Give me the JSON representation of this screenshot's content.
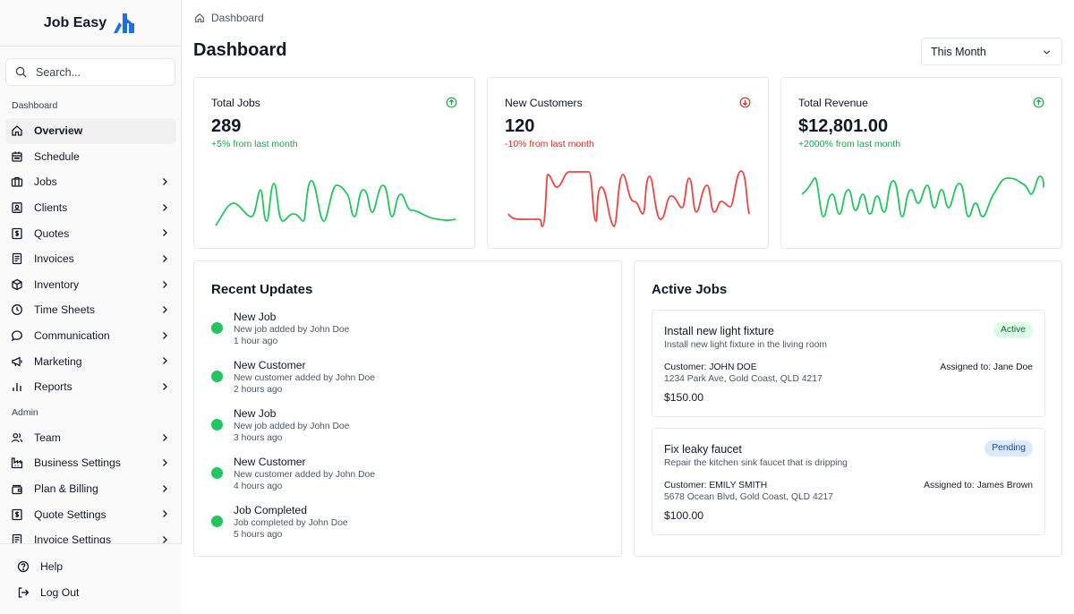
{
  "app": {
    "name": "Job Easy",
    "brand_color": "#1d6fe8"
  },
  "search": {
    "placeholder": "Search..."
  },
  "sidebar": {
    "sections": [
      {
        "label": "Dashboard",
        "items": [
          {
            "label": "Overview",
            "icon": "home-icon",
            "active": true,
            "chevron": false
          },
          {
            "label": "Schedule",
            "icon": "calendar-icon",
            "chevron": false
          },
          {
            "label": "Jobs",
            "icon": "briefcase-icon",
            "chevron": true
          },
          {
            "label": "Clients",
            "icon": "contact-icon",
            "chevron": true
          },
          {
            "label": "Quotes",
            "icon": "dollar-document-icon",
            "chevron": true
          },
          {
            "label": "Invoices",
            "icon": "invoice-icon",
            "chevron": true
          },
          {
            "label": "Inventory",
            "icon": "package-icon",
            "chevron": true
          },
          {
            "label": "Time Sheets",
            "icon": "clock-icon",
            "chevron": true
          },
          {
            "label": "Communication",
            "icon": "chat-icon",
            "chevron": true
          },
          {
            "label": "Marketing",
            "icon": "megaphone-icon",
            "chevron": true
          },
          {
            "label": "Reports",
            "icon": "bar-chart-icon",
            "chevron": true
          }
        ]
      },
      {
        "label": "Admin",
        "items": [
          {
            "label": "Team",
            "icon": "users-icon",
            "chevron": true
          },
          {
            "label": "Business Settings",
            "icon": "factory-icon",
            "chevron": true
          },
          {
            "label": "Plan & Billing",
            "icon": "wallet-icon",
            "chevron": true
          },
          {
            "label": "Quote Settings",
            "icon": "dollar-document-icon",
            "chevron": true
          },
          {
            "label": "Invoice Settings",
            "icon": "invoice-icon",
            "chevron": true
          }
        ]
      }
    ],
    "bottom": [
      {
        "label": "Help",
        "icon": "help-icon"
      },
      {
        "label": "Log Out",
        "icon": "logout-icon"
      }
    ]
  },
  "breadcrumb": {
    "label": "Dashboard"
  },
  "page": {
    "title": "Dashboard"
  },
  "period": {
    "selected": "This Month"
  },
  "stats": [
    {
      "label": "Total Jobs",
      "value": "289",
      "change": "+5% from last month",
      "trend": "up",
      "color": "#22c55e"
    },
    {
      "label": "New Customers",
      "value": "120",
      "change": "-10% from last month",
      "trend": "down",
      "color": "#ef4444"
    },
    {
      "label": "Total Revenue",
      "value": "$12,801.00",
      "change": "+2000% from last month",
      "trend": "up",
      "color": "#22c55e"
    }
  ],
  "recent_updates": {
    "title": "Recent Updates",
    "items": [
      {
        "title": "New Job",
        "desc": "New job added by John Doe",
        "time": "1 hour ago"
      },
      {
        "title": "New Customer",
        "desc": "New customer added by John Doe",
        "time": "2 hours ago"
      },
      {
        "title": "New Job",
        "desc": "New job added by John Doe",
        "time": "3 hours ago"
      },
      {
        "title": "New Customer",
        "desc": "New customer added by John Doe",
        "time": "4 hours ago"
      },
      {
        "title": "Job Completed",
        "desc": "Job completed by John Doe",
        "time": "5 hours ago"
      }
    ]
  },
  "active_jobs": {
    "title": "Active Jobs",
    "items": [
      {
        "title": "Install new light fixture",
        "desc": "Install new light fixture in the living room",
        "status": "Active",
        "customer": "Customer: JOHN DOE",
        "address": "1234 Park Ave, Gold Coast, QLD 4217",
        "assigned": "Assigned to: Jane Doe",
        "price": "$150.00"
      },
      {
        "title": "Fix leaky faucet",
        "desc": "Repair the kitchen sink faucet that is dripping",
        "status": "Pending",
        "customer": "Customer: EMILY SMITH",
        "address": "5678 Ocean Blvd, Gold Coast, QLD 4217",
        "assigned": "Assigned to: James Brown",
        "price": "$100.00"
      }
    ]
  }
}
